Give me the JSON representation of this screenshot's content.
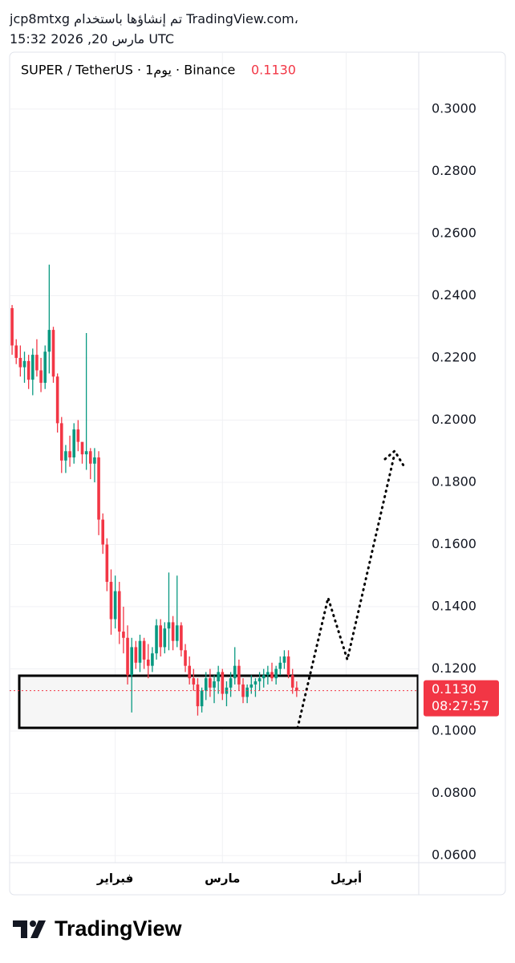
{
  "header": {
    "line1": "jcp8mtxg تم إنشاؤها باستخدام TradingView.com،",
    "line2": "مارس 20, 2026 15:32 UTC"
  },
  "chart_data": {
    "type": "candlestick",
    "title": "SUPER / TetherUS · 1يوم · Binance",
    "up_color": "#089981",
    "down_color": "#f23645",
    "open": [
      0.236,
      0.224,
      0.22,
      0.217,
      0.219,
      0.213,
      0.221,
      0.216,
      0.212,
      0.222,
      0.229,
      0.214,
      0.199,
      0.187,
      0.19,
      0.188,
      0.197,
      0.193,
      0.189,
      0.19,
      0.186,
      0.188,
      0.168,
      0.16,
      0.148,
      0.136,
      0.145,
      0.132,
      0.13,
      0.118,
      0.127,
      0.122,
      0.129,
      0.123,
      0.121,
      0.125,
      0.134,
      0.127,
      0.133,
      0.135,
      0.129,
      0.134,
      0.126,
      0.121,
      0.117,
      0.115,
      0.108,
      0.113,
      0.117,
      0.114,
      0.116,
      0.119,
      0.112,
      0.114,
      0.117,
      0.121,
      0.115,
      0.111,
      0.114,
      0.115,
      0.116,
      0.117,
      0.118,
      0.119,
      0.117,
      0.12,
      0.122,
      0.124,
      0.118,
      0.114
    ],
    "high": [
      0.237,
      0.226,
      0.224,
      0.222,
      0.221,
      0.223,
      0.226,
      0.22,
      0.224,
      0.25,
      0.23,
      0.215,
      0.201,
      0.192,
      0.195,
      0.199,
      0.2,
      0.192,
      0.228,
      0.191,
      0.191,
      0.19,
      0.17,
      0.162,
      0.152,
      0.15,
      0.148,
      0.14,
      0.134,
      0.13,
      0.129,
      0.131,
      0.13,
      0.128,
      0.127,
      0.136,
      0.136,
      0.135,
      0.151,
      0.137,
      0.15,
      0.135,
      0.128,
      0.124,
      0.12,
      0.117,
      0.114,
      0.119,
      0.12,
      0.118,
      0.121,
      0.12,
      0.116,
      0.119,
      0.127,
      0.123,
      0.117,
      0.115,
      0.118,
      0.117,
      0.119,
      0.12,
      0.121,
      0.122,
      0.121,
      0.124,
      0.126,
      0.126,
      0.12,
      0.116
    ],
    "low": [
      0.221,
      0.218,
      0.214,
      0.212,
      0.21,
      0.208,
      0.214,
      0.209,
      0.21,
      0.215,
      0.212,
      0.196,
      0.183,
      0.183,
      0.185,
      0.186,
      0.19,
      0.186,
      0.184,
      0.181,
      0.18,
      0.163,
      0.157,
      0.145,
      0.131,
      0.133,
      0.128,
      0.125,
      0.115,
      0.106,
      0.12,
      0.119,
      0.12,
      0.117,
      0.119,
      0.123,
      0.124,
      0.125,
      0.126,
      0.126,
      0.127,
      0.124,
      0.119,
      0.115,
      0.113,
      0.105,
      0.106,
      0.11,
      0.111,
      0.109,
      0.112,
      0.11,
      0.108,
      0.111,
      0.115,
      0.113,
      0.109,
      0.109,
      0.112,
      0.111,
      0.113,
      0.114,
      0.115,
      0.116,
      0.115,
      0.118,
      0.12,
      0.117,
      0.112,
      0.111
    ],
    "close": [
      0.224,
      0.22,
      0.217,
      0.219,
      0.213,
      0.221,
      0.216,
      0.212,
      0.222,
      0.229,
      0.214,
      0.199,
      0.187,
      0.19,
      0.188,
      0.197,
      0.193,
      0.189,
      0.19,
      0.186,
      0.188,
      0.168,
      0.16,
      0.148,
      0.136,
      0.145,
      0.132,
      0.13,
      0.118,
      0.127,
      0.122,
      0.129,
      0.123,
      0.121,
      0.125,
      0.134,
      0.127,
      0.133,
      0.135,
      0.129,
      0.134,
      0.126,
      0.121,
      0.117,
      0.115,
      0.108,
      0.113,
      0.117,
      0.114,
      0.116,
      0.119,
      0.112,
      0.114,
      0.117,
      0.121,
      0.115,
      0.111,
      0.114,
      0.115,
      0.116,
      0.117,
      0.118,
      0.119,
      0.117,
      0.12,
      0.122,
      0.124,
      0.118,
      0.114,
      0.113
    ],
    "xlim": [
      -0.6,
      98.2
    ],
    "xticks": [
      {
        "value": 25,
        "label": "فبراير"
      },
      {
        "value": 51,
        "label": "مارس"
      },
      {
        "value": 81,
        "label": "أبريل"
      }
    ],
    "ylim": [
      0.0577,
      0.3183
    ],
    "yticks": [
      {
        "value": 0.06,
        "label": "0.0600"
      },
      {
        "value": 0.08,
        "label": "0.0800"
      },
      {
        "value": 0.1,
        "label": "0.1000"
      },
      {
        "value": 0.12,
        "label": "0.1200"
      },
      {
        "value": 0.14,
        "label": "0.1400"
      },
      {
        "value": 0.16,
        "label": "0.1600"
      },
      {
        "value": 0.18,
        "label": "0.1800"
      },
      {
        "value": 0.2,
        "label": "0.2000"
      },
      {
        "value": 0.22,
        "label": "0.2200"
      },
      {
        "value": 0.24,
        "label": "0.2400"
      },
      {
        "value": 0.26,
        "label": "0.2600"
      },
      {
        "value": 0.28,
        "label": "0.2800"
      },
      {
        "value": 0.3,
        "label": "0.3000"
      }
    ],
    "grid": true,
    "current_price": {
      "value": 0.113,
      "label": "0.1130"
    },
    "countdown": "08:27:57"
  },
  "footer": {
    "logo": "TradingView"
  }
}
